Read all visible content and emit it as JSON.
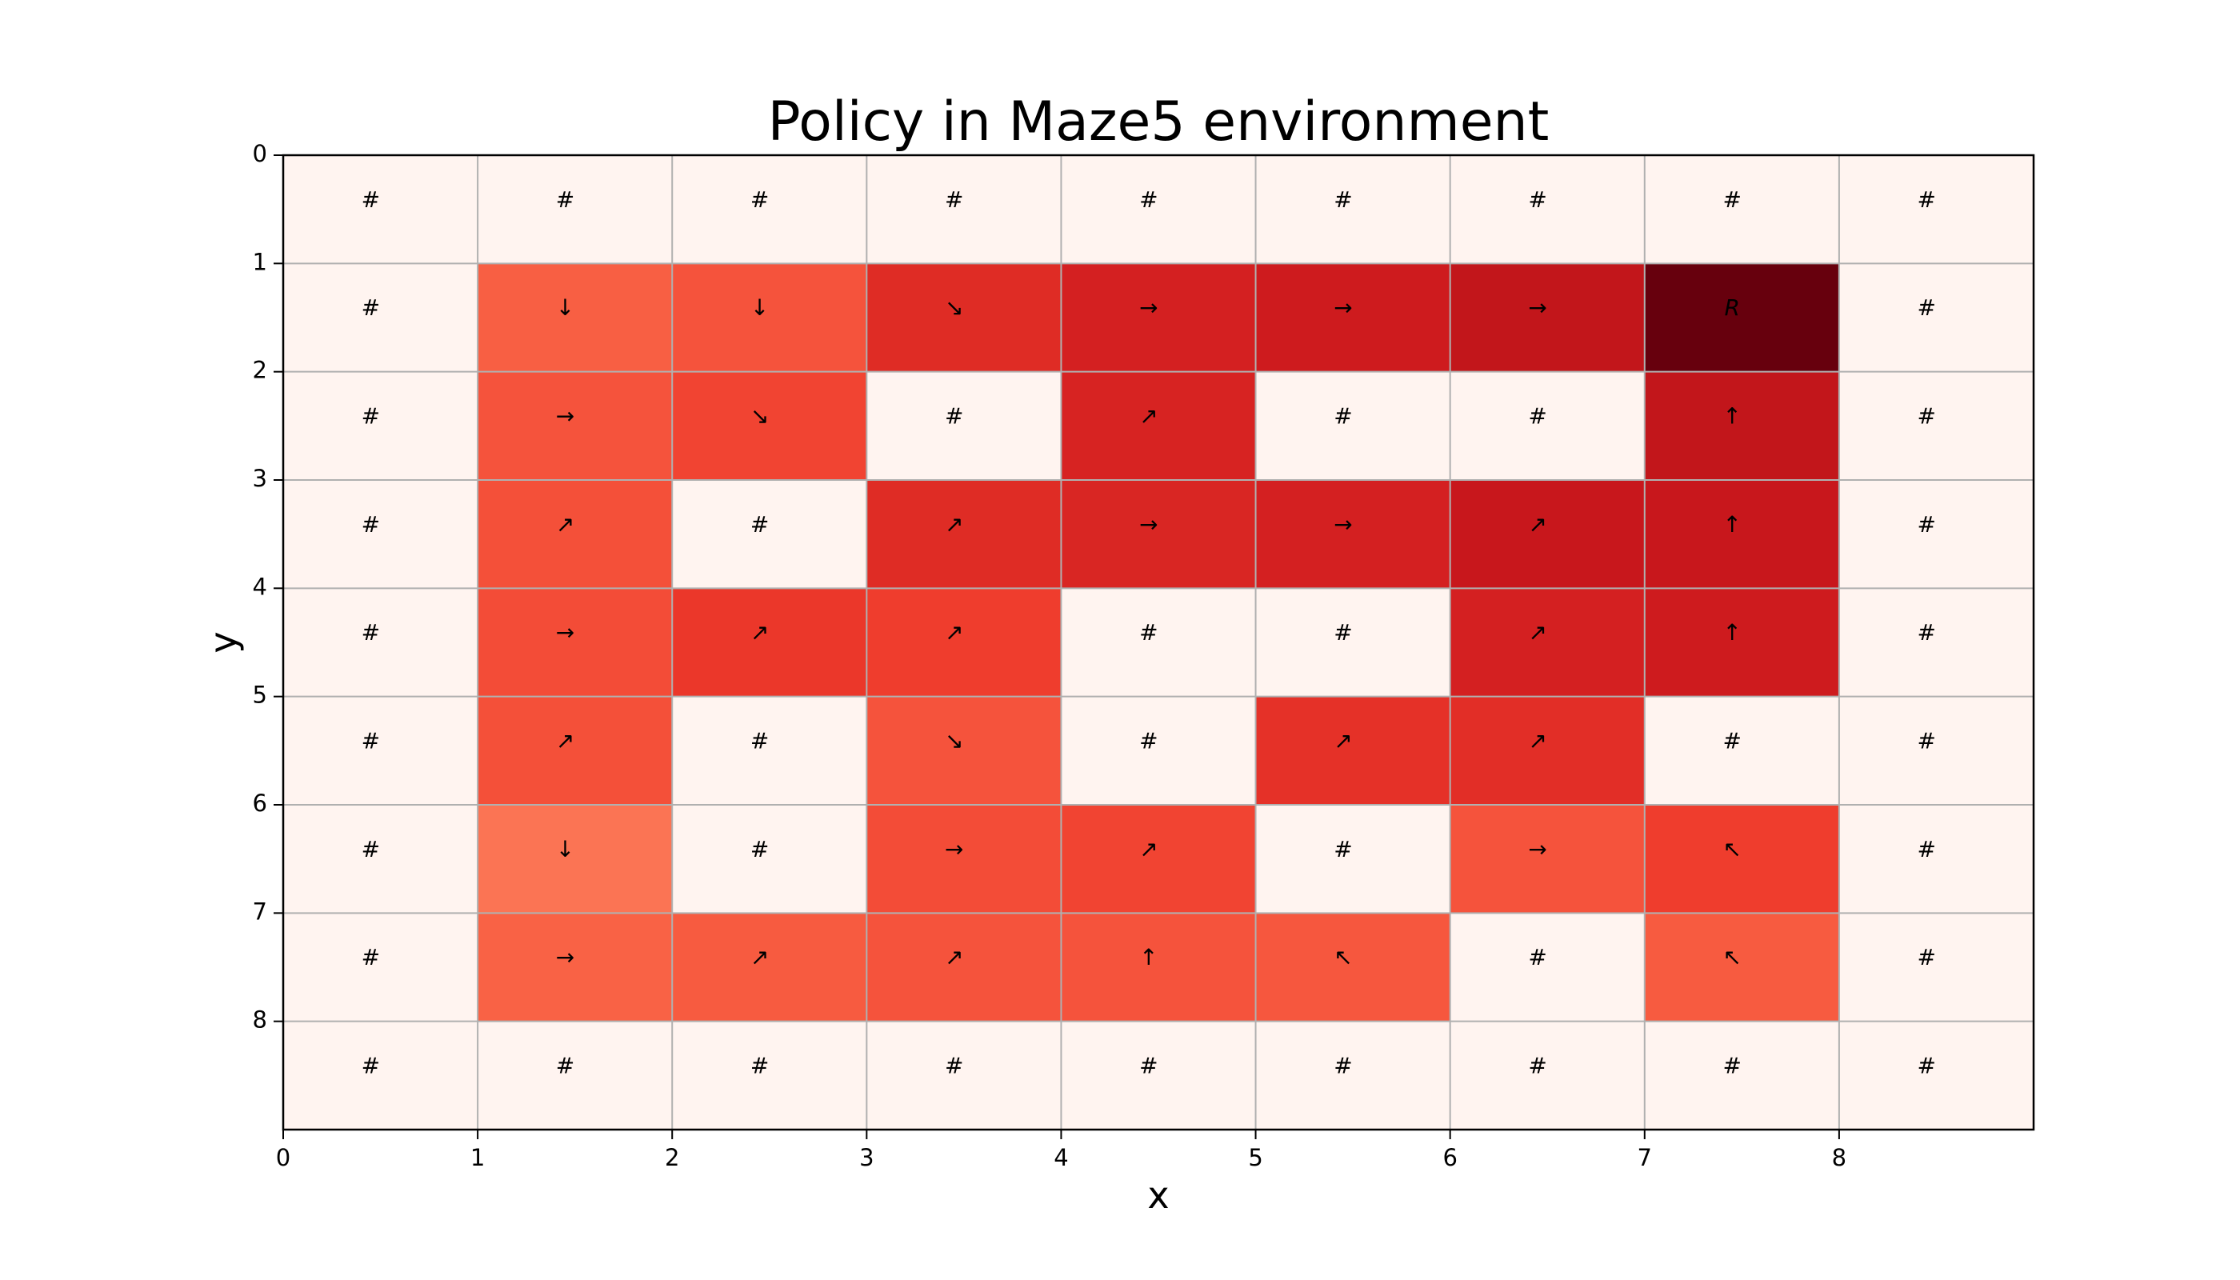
{
  "chart_data": {
    "type": "heatmap",
    "title": "Policy in Maze5 environment",
    "xlabel": "x",
    "ylabel": "y",
    "xlim": [
      0,
      9
    ],
    "ylim": [
      9,
      0
    ],
    "xticks": [
      "0",
      "1",
      "2",
      "3",
      "4",
      "5",
      "6",
      "7",
      "8"
    ],
    "yticks": [
      "0",
      "1",
      "2",
      "3",
      "4",
      "5",
      "6",
      "7",
      "8"
    ],
    "grid": true,
    "colormap": "Reds",
    "colors": {
      "wall": "#fff4f0",
      "low": "#fdd2bf",
      "high": "#67000d",
      "grid": "#b0b0b0"
    },
    "cell_labels": [
      [
        "#",
        "#",
        "#",
        "#",
        "#",
        "#",
        "#",
        "#",
        "#"
      ],
      [
        "#",
        "↓",
        "↓",
        "↘",
        "→",
        "→",
        "→",
        "R",
        "#"
      ],
      [
        "#",
        "→",
        "↘",
        "#",
        "↗",
        "#",
        "#",
        "↑",
        "#"
      ],
      [
        "#",
        "↗",
        "#",
        "↗",
        "→",
        "→",
        "↗",
        "↑",
        "#"
      ],
      [
        "#",
        "→",
        "↗",
        "↗",
        "#",
        "#",
        "↗",
        "↑",
        "#"
      ],
      [
        "#",
        "↗",
        "#",
        "↘",
        "#",
        "↗",
        "↗",
        "#",
        "#"
      ],
      [
        "#",
        "↓",
        "#",
        "→",
        "↗",
        "#",
        "→",
        "↖",
        "#"
      ],
      [
        "#",
        "→",
        "↗",
        "↗",
        "↑",
        "↖",
        "#",
        "↖",
        "#"
      ],
      [
        "#",
        "#",
        "#",
        "#",
        "#",
        "#",
        "#",
        "#",
        "#"
      ]
    ],
    "values": [
      [
        0,
        0,
        0,
        0,
        0,
        0,
        0,
        0,
        0
      ],
      [
        0,
        0.53,
        0.56,
        0.68,
        0.72,
        0.74,
        0.78,
        1.0,
        0
      ],
      [
        0,
        0.56,
        0.6,
        0,
        0.71,
        0,
        0,
        0.78,
        0
      ],
      [
        0,
        0.57,
        0,
        0.68,
        0.7,
        0.72,
        0.76,
        0.76,
        0
      ],
      [
        0,
        0.58,
        0.64,
        0.62,
        0,
        0,
        0.72,
        0.74,
        0
      ],
      [
        0,
        0.57,
        0,
        0.56,
        0,
        0.66,
        0.67,
        0,
        0
      ],
      [
        0,
        0.47,
        0,
        0.58,
        0.6,
        0,
        0.56,
        0.62,
        0
      ],
      [
        0,
        0.52,
        0.54,
        0.56,
        0.56,
        0.55,
        0,
        0.54,
        0
      ],
      [
        0,
        0,
        0,
        0,
        0,
        0,
        0,
        0,
        0
      ]
    ]
  }
}
